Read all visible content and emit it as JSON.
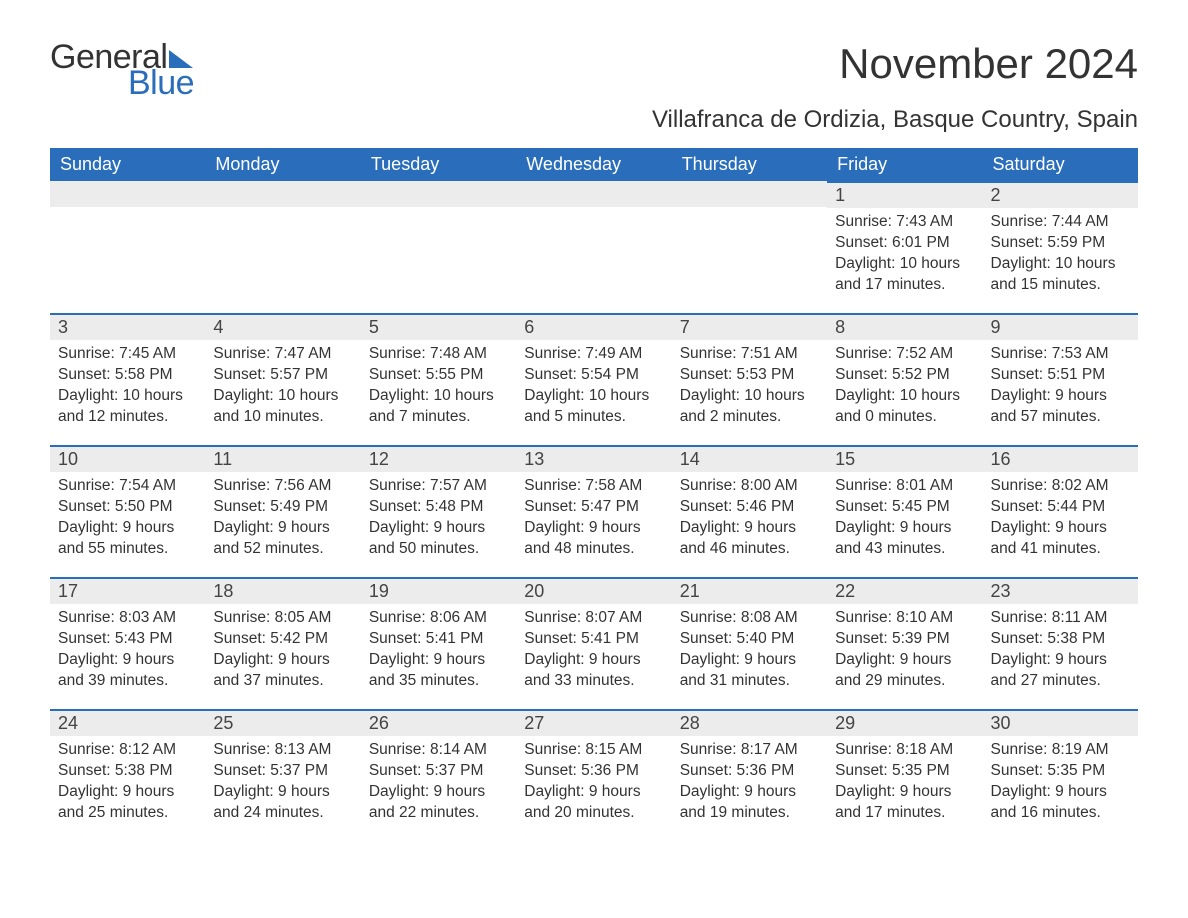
{
  "brand": {
    "name_part1": "General",
    "name_part2": "Blue",
    "color_text": "#333333",
    "color_blue": "#2a6ebb"
  },
  "title": "November 2024",
  "subtitle": "Villafranca de Ordizia, Basque Country, Spain",
  "colors": {
    "header_bg": "#2a6ebb",
    "header_text": "#ffffff",
    "daynum_bg": "#ececec",
    "daynum_border": "#2a6ebb",
    "body_text": "#333333",
    "page_bg": "#ffffff"
  },
  "day_headers": [
    "Sunday",
    "Monday",
    "Tuesday",
    "Wednesday",
    "Thursday",
    "Friday",
    "Saturday"
  ],
  "weeks": [
    [
      null,
      null,
      null,
      null,
      null,
      {
        "num": "1",
        "sunrise": "Sunrise: 7:43 AM",
        "sunset": "Sunset: 6:01 PM",
        "day1": "Daylight: 10 hours",
        "day2": "and 17 minutes."
      },
      {
        "num": "2",
        "sunrise": "Sunrise: 7:44 AM",
        "sunset": "Sunset: 5:59 PM",
        "day1": "Daylight: 10 hours",
        "day2": "and 15 minutes."
      }
    ],
    [
      {
        "num": "3",
        "sunrise": "Sunrise: 7:45 AM",
        "sunset": "Sunset: 5:58 PM",
        "day1": "Daylight: 10 hours",
        "day2": "and 12 minutes."
      },
      {
        "num": "4",
        "sunrise": "Sunrise: 7:47 AM",
        "sunset": "Sunset: 5:57 PM",
        "day1": "Daylight: 10 hours",
        "day2": "and 10 minutes."
      },
      {
        "num": "5",
        "sunrise": "Sunrise: 7:48 AM",
        "sunset": "Sunset: 5:55 PM",
        "day1": "Daylight: 10 hours",
        "day2": "and 7 minutes."
      },
      {
        "num": "6",
        "sunrise": "Sunrise: 7:49 AM",
        "sunset": "Sunset: 5:54 PM",
        "day1": "Daylight: 10 hours",
        "day2": "and 5 minutes."
      },
      {
        "num": "7",
        "sunrise": "Sunrise: 7:51 AM",
        "sunset": "Sunset: 5:53 PM",
        "day1": "Daylight: 10 hours",
        "day2": "and 2 minutes."
      },
      {
        "num": "8",
        "sunrise": "Sunrise: 7:52 AM",
        "sunset": "Sunset: 5:52 PM",
        "day1": "Daylight: 10 hours",
        "day2": "and 0 minutes."
      },
      {
        "num": "9",
        "sunrise": "Sunrise: 7:53 AM",
        "sunset": "Sunset: 5:51 PM",
        "day1": "Daylight: 9 hours",
        "day2": "and 57 minutes."
      }
    ],
    [
      {
        "num": "10",
        "sunrise": "Sunrise: 7:54 AM",
        "sunset": "Sunset: 5:50 PM",
        "day1": "Daylight: 9 hours",
        "day2": "and 55 minutes."
      },
      {
        "num": "11",
        "sunrise": "Sunrise: 7:56 AM",
        "sunset": "Sunset: 5:49 PM",
        "day1": "Daylight: 9 hours",
        "day2": "and 52 minutes."
      },
      {
        "num": "12",
        "sunrise": "Sunrise: 7:57 AM",
        "sunset": "Sunset: 5:48 PM",
        "day1": "Daylight: 9 hours",
        "day2": "and 50 minutes."
      },
      {
        "num": "13",
        "sunrise": "Sunrise: 7:58 AM",
        "sunset": "Sunset: 5:47 PM",
        "day1": "Daylight: 9 hours",
        "day2": "and 48 minutes."
      },
      {
        "num": "14",
        "sunrise": "Sunrise: 8:00 AM",
        "sunset": "Sunset: 5:46 PM",
        "day1": "Daylight: 9 hours",
        "day2": "and 46 minutes."
      },
      {
        "num": "15",
        "sunrise": "Sunrise: 8:01 AM",
        "sunset": "Sunset: 5:45 PM",
        "day1": "Daylight: 9 hours",
        "day2": "and 43 minutes."
      },
      {
        "num": "16",
        "sunrise": "Sunrise: 8:02 AM",
        "sunset": "Sunset: 5:44 PM",
        "day1": "Daylight: 9 hours",
        "day2": "and 41 minutes."
      }
    ],
    [
      {
        "num": "17",
        "sunrise": "Sunrise: 8:03 AM",
        "sunset": "Sunset: 5:43 PM",
        "day1": "Daylight: 9 hours",
        "day2": "and 39 minutes."
      },
      {
        "num": "18",
        "sunrise": "Sunrise: 8:05 AM",
        "sunset": "Sunset: 5:42 PM",
        "day1": "Daylight: 9 hours",
        "day2": "and 37 minutes."
      },
      {
        "num": "19",
        "sunrise": "Sunrise: 8:06 AM",
        "sunset": "Sunset: 5:41 PM",
        "day1": "Daylight: 9 hours",
        "day2": "and 35 minutes."
      },
      {
        "num": "20",
        "sunrise": "Sunrise: 8:07 AM",
        "sunset": "Sunset: 5:41 PM",
        "day1": "Daylight: 9 hours",
        "day2": "and 33 minutes."
      },
      {
        "num": "21",
        "sunrise": "Sunrise: 8:08 AM",
        "sunset": "Sunset: 5:40 PM",
        "day1": "Daylight: 9 hours",
        "day2": "and 31 minutes."
      },
      {
        "num": "22",
        "sunrise": "Sunrise: 8:10 AM",
        "sunset": "Sunset: 5:39 PM",
        "day1": "Daylight: 9 hours",
        "day2": "and 29 minutes."
      },
      {
        "num": "23",
        "sunrise": "Sunrise: 8:11 AM",
        "sunset": "Sunset: 5:38 PM",
        "day1": "Daylight: 9 hours",
        "day2": "and 27 minutes."
      }
    ],
    [
      {
        "num": "24",
        "sunrise": "Sunrise: 8:12 AM",
        "sunset": "Sunset: 5:38 PM",
        "day1": "Daylight: 9 hours",
        "day2": "and 25 minutes."
      },
      {
        "num": "25",
        "sunrise": "Sunrise: 8:13 AM",
        "sunset": "Sunset: 5:37 PM",
        "day1": "Daylight: 9 hours",
        "day2": "and 24 minutes."
      },
      {
        "num": "26",
        "sunrise": "Sunrise: 8:14 AM",
        "sunset": "Sunset: 5:37 PM",
        "day1": "Daylight: 9 hours",
        "day2": "and 22 minutes."
      },
      {
        "num": "27",
        "sunrise": "Sunrise: 8:15 AM",
        "sunset": "Sunset: 5:36 PM",
        "day1": "Daylight: 9 hours",
        "day2": "and 20 minutes."
      },
      {
        "num": "28",
        "sunrise": "Sunrise: 8:17 AM",
        "sunset": "Sunset: 5:36 PM",
        "day1": "Daylight: 9 hours",
        "day2": "and 19 minutes."
      },
      {
        "num": "29",
        "sunrise": "Sunrise: 8:18 AM",
        "sunset": "Sunset: 5:35 PM",
        "day1": "Daylight: 9 hours",
        "day2": "and 17 minutes."
      },
      {
        "num": "30",
        "sunrise": "Sunrise: 8:19 AM",
        "sunset": "Sunset: 5:35 PM",
        "day1": "Daylight: 9 hours",
        "day2": "and 16 minutes."
      }
    ]
  ]
}
